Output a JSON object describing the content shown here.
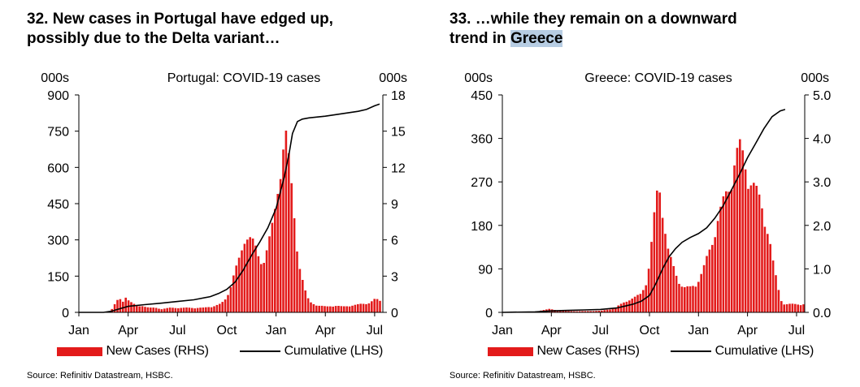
{
  "colors": {
    "bars": "#e31b1b",
    "line": "#000000",
    "highlight": "#b7cde3"
  },
  "source": "Source: Refinitiv Datastream, HSBC.",
  "panels": [
    {
      "title_parts": [
        {
          "text": "32. New cases in Portugal have edged up,",
          "highlight": false
        },
        {
          "text": "possibly due to the Delta variant…",
          "highlight": false
        }
      ],
      "legend": {
        "bars": "New Cases (RHS)",
        "line": "Cumulative (LHS)"
      }
    },
    {
      "title_parts": [
        {
          "text": "33. …while they remain on a downward",
          "highlight": false
        },
        {
          "text": "trend in ",
          "highlight": false
        },
        {
          "text": "Greece",
          "highlight": true
        }
      ],
      "legend": {
        "bars": "New Cases (RHS)",
        "line": "Cumulative (LHS)"
      }
    }
  ],
  "chart_data": [
    {
      "type": "bar+line",
      "title": "Portugal: COVID-19 cases",
      "left_unit": "000s",
      "right_unit": "000s",
      "x_ticks": [
        "Jan",
        "Apr",
        "Jul",
        "Oct",
        "Jan",
        "Apr",
        "Jul"
      ],
      "xlim_months": [
        0,
        18.5
      ],
      "left_axis": {
        "min": 0,
        "max": 900,
        "ticks": [
          "0",
          "150",
          "300",
          "450",
          "600",
          "750",
          "900"
        ]
      },
      "right_axis": {
        "min": 0,
        "max": 18,
        "ticks": [
          "0",
          "3",
          "6",
          "9",
          "12",
          "15",
          "18"
        ]
      },
      "series": [
        {
          "name": "New Cases (RHS)",
          "style": "bars",
          "axis": "right",
          "points": [
            [
              0,
              0
            ],
            [
              1.8,
              0
            ],
            [
              2.0,
              0.4
            ],
            [
              2.2,
              0.9
            ],
            [
              2.4,
              1.2
            ],
            [
              2.6,
              0.9
            ],
            [
              2.8,
              1.5
            ],
            [
              3.0,
              1.0
            ],
            [
              3.2,
              0.8
            ],
            [
              3.5,
              0.5
            ],
            [
              3.8,
              0.6
            ],
            [
              4.2,
              0.4
            ],
            [
              4.6,
              0.4
            ],
            [
              5.0,
              0.3
            ],
            [
              5.5,
              0.4
            ],
            [
              6.0,
              0.4
            ],
            [
              6.5,
              0.4
            ],
            [
              7.0,
              0.4
            ],
            [
              7.5,
              0.4
            ],
            [
              8.0,
              0.5
            ],
            [
              8.5,
              0.7
            ],
            [
              8.8,
              1.0
            ],
            [
              9.0,
              1.6
            ],
            [
              9.2,
              2.5
            ],
            [
              9.4,
              3.5
            ],
            [
              9.6,
              4.2
            ],
            [
              9.8,
              5.0
            ],
            [
              10.0,
              6.3
            ],
            [
              10.2,
              7.2
            ],
            [
              10.4,
              6.6
            ],
            [
              10.6,
              6.0
            ],
            [
              10.8,
              5.0
            ],
            [
              11.0,
              4.3
            ],
            [
              11.2,
              5.0
            ],
            [
              11.4,
              5.8
            ],
            [
              11.6,
              6.8
            ],
            [
              11.8,
              8.0
            ],
            [
              12.0,
              10.0
            ],
            [
              12.2,
              13.0
            ],
            [
              12.4,
              15.5
            ],
            [
              12.5,
              16.4
            ],
            [
              12.6,
              14.8
            ],
            [
              12.8,
              12.0
            ],
            [
              13.0,
              9.0
            ],
            [
              13.2,
              6.0
            ],
            [
              13.4,
              4.0
            ],
            [
              13.6,
              2.5
            ],
            [
              13.8,
              1.4
            ],
            [
              14.0,
              0.9
            ],
            [
              14.5,
              0.6
            ],
            [
              15.0,
              0.5
            ],
            [
              15.5,
              0.6
            ],
            [
              16.0,
              0.5
            ],
            [
              16.5,
              0.6
            ],
            [
              17.0,
              0.7
            ],
            [
              17.5,
              0.8
            ],
            [
              17.8,
              1.0
            ],
            [
              18.0,
              1.2
            ],
            [
              18.2,
              1.0
            ]
          ]
        },
        {
          "name": "Cumulative (LHS)",
          "style": "line",
          "axis": "left",
          "points": [
            [
              0,
              0
            ],
            [
              1.5,
              0
            ],
            [
              2.0,
              5
            ],
            [
              2.5,
              15
            ],
            [
              3.0,
              25
            ],
            [
              4.0,
              32
            ],
            [
              5.0,
              38
            ],
            [
              6.0,
              45
            ],
            [
              7.0,
              52
            ],
            [
              8.0,
              65
            ],
            [
              8.5,
              78
            ],
            [
              9.0,
              95
            ],
            [
              9.5,
              125
            ],
            [
              10.0,
              175
            ],
            [
              10.5,
              235
            ],
            [
              11.0,
              290
            ],
            [
              11.5,
              350
            ],
            [
              12.0,
              430
            ],
            [
              12.5,
              560
            ],
            [
              12.8,
              660
            ],
            [
              13.0,
              740
            ],
            [
              13.3,
              790
            ],
            [
              13.6,
              800
            ],
            [
              14.0,
              805
            ],
            [
              15.0,
              812
            ],
            [
              16.0,
              822
            ],
            [
              17.0,
              832
            ],
            [
              17.5,
              840
            ],
            [
              18.0,
              855
            ],
            [
              18.3,
              862
            ]
          ]
        }
      ]
    },
    {
      "type": "bar+line",
      "title": "Greece: COVID-19 cases",
      "left_unit": "000s",
      "right_unit": "000s",
      "x_ticks": [
        "Jan",
        "Apr",
        "Jul",
        "Oct",
        "Jan",
        "Apr",
        "Jul"
      ],
      "xlim_months": [
        0,
        18.5
      ],
      "left_axis": {
        "min": 0,
        "max": 450,
        "ticks": [
          "0",
          "90",
          "180",
          "270",
          "360",
          "450"
        ]
      },
      "right_axis": {
        "min": 0,
        "max": 5.0,
        "ticks": [
          "0.0",
          "1.0",
          "2.0",
          "3.0",
          "4.0",
          "5.0"
        ]
      },
      "series": [
        {
          "name": "New Cases (RHS)",
          "style": "bars",
          "axis": "right",
          "points": [
            [
              0,
              0
            ],
            [
              2.0,
              0
            ],
            [
              2.3,
              0.05
            ],
            [
              2.8,
              0.08
            ],
            [
              3.3,
              0.05
            ],
            [
              4.0,
              0.03
            ],
            [
              5.0,
              0.03
            ],
            [
              6.0,
              0.04
            ],
            [
              6.8,
              0.1
            ],
            [
              7.2,
              0.2
            ],
            [
              7.6,
              0.3
            ],
            [
              8.0,
              0.35
            ],
            [
              8.4,
              0.45
            ],
            [
              8.8,
              0.8
            ],
            [
              9.0,
              1.4
            ],
            [
              9.2,
              2.2
            ],
            [
              9.4,
              2.9
            ],
            [
              9.6,
              3.1
            ],
            [
              9.8,
              2.4
            ],
            [
              10.0,
              1.6
            ],
            [
              10.3,
              1.2
            ],
            [
              10.6,
              0.9
            ],
            [
              11.0,
              0.6
            ],
            [
              11.4,
              0.6
            ],
            [
              11.8,
              0.7
            ],
            [
              12.2,
              1.0
            ],
            [
              12.6,
              1.5
            ],
            [
              13.0,
              2.1
            ],
            [
              13.4,
              2.6
            ],
            [
              13.8,
              3.1
            ],
            [
              14.2,
              3.8
            ],
            [
              14.5,
              4.0
            ],
            [
              14.8,
              3.6
            ],
            [
              15.1,
              3.3
            ],
            [
              15.4,
              3.0
            ],
            [
              15.8,
              2.6
            ],
            [
              16.2,
              2.0
            ],
            [
              16.5,
              1.2
            ],
            [
              16.8,
              0.6
            ],
            [
              17.0,
              0.3
            ],
            [
              17.2,
              0.2
            ]
          ]
        },
        {
          "name": "Cumulative (LHS)",
          "style": "line",
          "axis": "left",
          "points": [
            [
              0,
              0
            ],
            [
              2.0,
              1
            ],
            [
              3.0,
              3
            ],
            [
              4.0,
              4
            ],
            [
              5.0,
              5
            ],
            [
              6.0,
              6
            ],
            [
              7.0,
              9
            ],
            [
              7.5,
              13
            ],
            [
              8.0,
              17
            ],
            [
              8.5,
              23
            ],
            [
              9.0,
              35
            ],
            [
              9.4,
              60
            ],
            [
              9.8,
              90
            ],
            [
              10.2,
              115
            ],
            [
              10.6,
              132
            ],
            [
              11.0,
              145
            ],
            [
              11.5,
              155
            ],
            [
              12.0,
              163
            ],
            [
              12.5,
              175
            ],
            [
              13.0,
              195
            ],
            [
              13.5,
              220
            ],
            [
              14.0,
              252
            ],
            [
              14.5,
              285
            ],
            [
              15.0,
              320
            ],
            [
              15.5,
              350
            ],
            [
              16.0,
              380
            ],
            [
              16.5,
              405
            ],
            [
              17.0,
              417
            ],
            [
              17.3,
              420
            ]
          ]
        }
      ]
    }
  ]
}
